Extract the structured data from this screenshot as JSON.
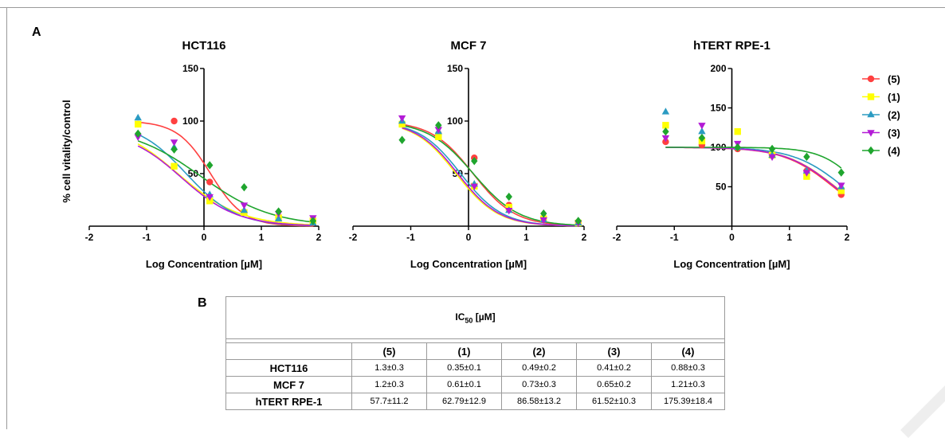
{
  "panels": {
    "a": "A",
    "b": "B"
  },
  "colors": {
    "(5)": "#ff4040",
    "(1)": "#ffff00",
    "(2)": "#2b9bc2",
    "(3)": "#b31bd6",
    "(4)": "#1fa52e"
  },
  "chart_data": [
    {
      "type": "scatter",
      "title": "HCT116",
      "xlabel": "Log Concentration [µM]",
      "ylabel": "% cell vitality/control",
      "xlim": [
        -2,
        2
      ],
      "ylim": [
        0,
        150
      ],
      "xticks": [
        "-2",
        "-1",
        "0",
        "1",
        "2"
      ],
      "yticks": [
        "50",
        "100",
        "150"
      ],
      "series": [
        {
          "name": "(5)",
          "points": [
            [
              -1.15,
              97
            ],
            [
              -0.52,
              100
            ],
            [
              0.1,
              42
            ],
            [
              0.7,
              13
            ],
            [
              1.3,
              8
            ],
            [
              1.9,
              3
            ]
          ],
          "fit": {
            "top": 100,
            "bottom": 0,
            "ic50": 1.3,
            "hill": 1.5
          }
        },
        {
          "name": "(1)",
          "points": [
            [
              -1.15,
              97
            ],
            [
              -0.52,
              57
            ],
            [
              0.1,
              24
            ],
            [
              0.7,
              13
            ],
            [
              1.3,
              8
            ],
            [
              1.9,
              5
            ]
          ],
          "fit": {
            "top": 100,
            "bottom": 0,
            "ic50": 0.35,
            "hill": 0.8
          }
        },
        {
          "name": "(2)",
          "points": [
            [
              -1.15,
              103
            ],
            [
              -0.52,
              75
            ],
            [
              0.1,
              30
            ],
            [
              0.7,
              15
            ],
            [
              1.3,
              7
            ],
            [
              1.9,
              3
            ]
          ],
          "fit": {
            "top": 100,
            "bottom": 0,
            "ic50": 0.49,
            "hill": 1.0
          }
        },
        {
          "name": "(3)",
          "points": [
            [
              -1.15,
              85
            ],
            [
              -0.52,
              80
            ],
            [
              0.1,
              28
            ],
            [
              0.7,
              20
            ],
            [
              1.3,
              12
            ],
            [
              1.9,
              8
            ]
          ],
          "fit": {
            "top": 92,
            "bottom": 0,
            "ic50": 0.41,
            "hill": 0.9
          }
        },
        {
          "name": "(4)",
          "points": [
            [
              -1.15,
              88
            ],
            [
              -0.52,
              73
            ],
            [
              0.1,
              58
            ],
            [
              0.7,
              37
            ],
            [
              1.3,
              14
            ],
            [
              1.9,
              5
            ]
          ],
          "fit": {
            "top": 95,
            "bottom": 0,
            "ic50": 0.88,
            "hill": 0.7
          }
        }
      ]
    },
    {
      "type": "scatter",
      "title": "MCF 7",
      "xlabel": "Log Concentration [µM]",
      "ylabel": "",
      "xlim": [
        -2,
        2
      ],
      "ylim": [
        0,
        150
      ],
      "xticks": [
        "-2",
        "-1",
        "0",
        "1",
        "2"
      ],
      "yticks": [
        "50",
        "100",
        "150"
      ],
      "series": [
        {
          "name": "(5)",
          "points": [
            [
              -1.15,
              97
            ],
            [
              -0.52,
              88
            ],
            [
              0.1,
              65
            ],
            [
              0.7,
              20
            ],
            [
              1.3,
              8
            ],
            [
              1.9,
              3
            ]
          ],
          "fit": {
            "top": 100,
            "bottom": 0,
            "ic50": 1.2,
            "hill": 1.2
          }
        },
        {
          "name": "(1)",
          "points": [
            [
              -1.15,
              97
            ],
            [
              -0.52,
              85
            ],
            [
              0.1,
              38
            ],
            [
              0.7,
              18
            ],
            [
              1.3,
              7
            ],
            [
              1.9,
              3
            ]
          ],
          "fit": {
            "top": 100,
            "bottom": 0,
            "ic50": 0.61,
            "hill": 1.2
          }
        },
        {
          "name": "(2)",
          "points": [
            [
              -1.15,
              100
            ],
            [
              -0.52,
              90
            ],
            [
              0.1,
              40
            ],
            [
              0.7,
              15
            ],
            [
              1.3,
              6
            ],
            [
              1.9,
              3
            ]
          ],
          "fit": {
            "top": 100,
            "bottom": 0,
            "ic50": 0.73,
            "hill": 1.2
          }
        },
        {
          "name": "(3)",
          "points": [
            [
              -1.15,
              103
            ],
            [
              -0.52,
              92
            ],
            [
              0.1,
              38
            ],
            [
              0.7,
              15
            ],
            [
              1.3,
              6
            ],
            [
              1.9,
              3
            ]
          ],
          "fit": {
            "top": 100,
            "bottom": 0,
            "ic50": 0.65,
            "hill": 1.2
          }
        },
        {
          "name": "(4)",
          "points": [
            [
              -1.15,
              82
            ],
            [
              -0.52,
              96
            ],
            [
              0.1,
              62
            ],
            [
              0.7,
              28
            ],
            [
              1.3,
              12
            ],
            [
              1.9,
              5
            ]
          ],
          "fit": {
            "top": 100,
            "bottom": 0,
            "ic50": 1.21,
            "hill": 1.1
          }
        }
      ]
    },
    {
      "type": "scatter",
      "title": "hTERT RPE-1",
      "xlabel": "Log Concentration [µM]",
      "ylabel": "",
      "xlim": [
        -2,
        2
      ],
      "ylim": [
        0,
        200
      ],
      "xticks": [
        "-2",
        "-1",
        "0",
        "1",
        "2"
      ],
      "yticks": [
        "50",
        "100",
        "150",
        "200"
      ],
      "series": [
        {
          "name": "(5)",
          "points": [
            [
              -1.15,
              107
            ],
            [
              -0.52,
              103
            ],
            [
              0.1,
              98
            ],
            [
              0.7,
              90
            ],
            [
              1.3,
              70
            ],
            [
              1.9,
              40
            ]
          ],
          "fit": {
            "top": 100,
            "bottom": 0,
            "ic50": 57.7,
            "hill": 1.0
          }
        },
        {
          "name": "(1)",
          "points": [
            [
              -1.15,
              128
            ],
            [
              -0.52,
              108
            ],
            [
              0.1,
              120
            ],
            [
              0.7,
              90
            ],
            [
              1.3,
              63
            ],
            [
              1.9,
              45
            ]
          ],
          "fit": {
            "top": 100,
            "bottom": 0,
            "ic50": 62.79,
            "hill": 1.0
          }
        },
        {
          "name": "(2)",
          "points": [
            [
              -1.15,
              145
            ],
            [
              -0.52,
              120
            ],
            [
              0.1,
              100
            ],
            [
              0.7,
              90
            ],
            [
              1.3,
              70
            ],
            [
              1.9,
              50
            ]
          ],
          "fit": {
            "top": 100,
            "bottom": 0,
            "ic50": 86.58,
            "hill": 1.0
          }
        },
        {
          "name": "(3)",
          "points": [
            [
              -1.15,
              112
            ],
            [
              -0.52,
              128
            ],
            [
              0.1,
              105
            ],
            [
              0.7,
              88
            ],
            [
              1.3,
              68
            ],
            [
              1.9,
              52
            ]
          ],
          "fit": {
            "top": 100,
            "bottom": 0,
            "ic50": 61.52,
            "hill": 1.0
          }
        },
        {
          "name": "(4)",
          "points": [
            [
              -1.15,
              120
            ],
            [
              -0.52,
              112
            ],
            [
              0.1,
              100
            ],
            [
              0.7,
              98
            ],
            [
              1.3,
              88
            ],
            [
              1.9,
              68
            ]
          ],
          "fit": {
            "top": 100,
            "bottom": 0,
            "ic50": 175.39,
            "hill": 1.3
          }
        }
      ]
    }
  ],
  "legend": [
    {
      "name": "(5)",
      "marker": "circle"
    },
    {
      "name": "(1)",
      "marker": "square"
    },
    {
      "name": "(2)",
      "marker": "triangle-up"
    },
    {
      "name": "(3)",
      "marker": "triangle-down"
    },
    {
      "name": "(4)",
      "marker": "diamond"
    }
  ],
  "table": {
    "title": "IC",
    "title_sub": "50",
    "title_unit": " [µM]",
    "columns": [
      "(5)",
      "(1)",
      "(2)",
      "(3)",
      "(4)"
    ],
    "rows": [
      {
        "label": "HCT116",
        "values": [
          "1.3±0.3",
          "0.35±0.1",
          "0.49±0.2",
          "0.41±0.2",
          "0.88±0.3"
        ]
      },
      {
        "label": "MCF 7",
        "values": [
          "1.2±0.3",
          "0.61±0.1",
          "0.73±0.3",
          "0.65±0.2",
          "1.21±0.3"
        ]
      },
      {
        "label": "hTERT RPE-1",
        "values": [
          "57.7±11.2",
          "62.79±12.9",
          "86.58±13.2",
          "61.52±10.3",
          "175.39±18.4"
        ]
      }
    ]
  }
}
